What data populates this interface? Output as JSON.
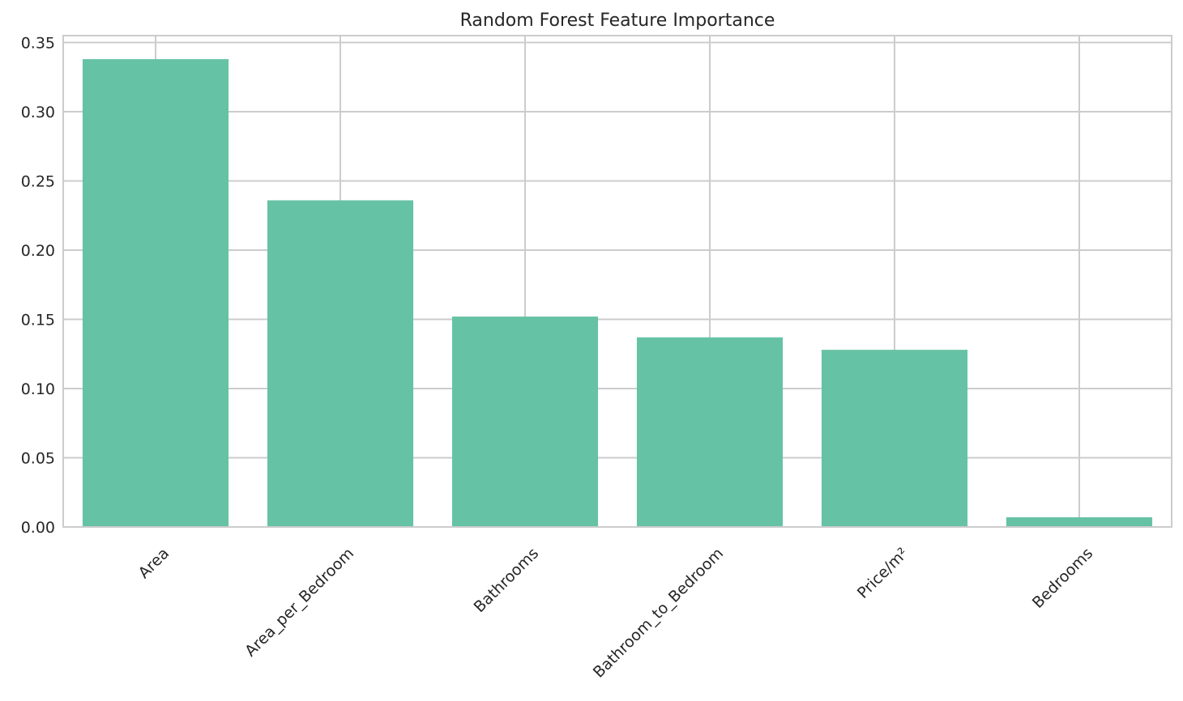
{
  "chart_data": {
    "type": "bar",
    "title": "Random Forest Feature Importance",
    "xlabel": "",
    "ylabel": "",
    "categories": [
      "Area",
      "Area_per_Bedroom",
      "Bathrooms",
      "Bathroom_to_Bedroom",
      "Price/m²",
      "Bedrooms"
    ],
    "values": [
      0.338,
      0.236,
      0.152,
      0.137,
      0.128,
      0.007
    ],
    "ylim": [
      0,
      0.355
    ],
    "yticks": [
      "0.00",
      "0.05",
      "0.10",
      "0.15",
      "0.20",
      "0.25",
      "0.30",
      "0.35"
    ],
    "xtick_rotation_deg": 45,
    "grid": true,
    "bar_color": "#66c2a5",
    "grid_color": "#cccccc"
  }
}
